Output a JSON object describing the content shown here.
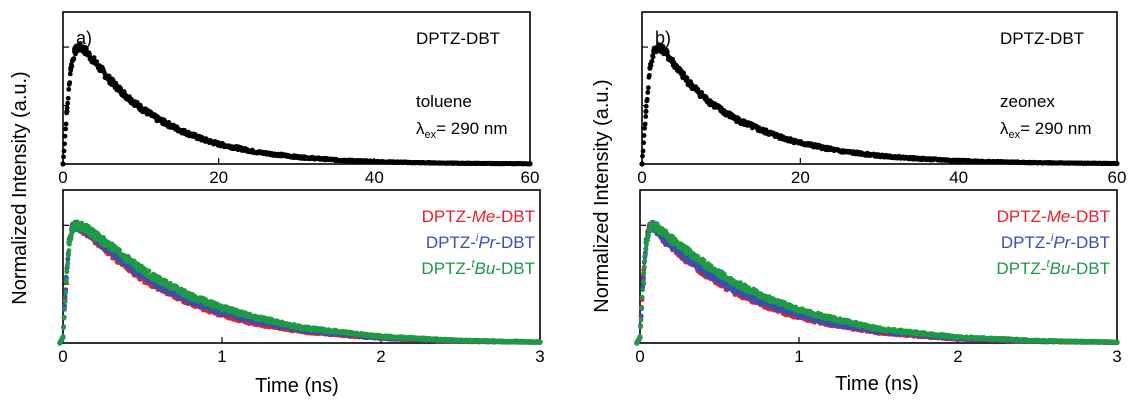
{
  "figure": {
    "panel_a_letter": "a)",
    "panel_b_letter": "b)",
    "ylabel": "Normalized Intensity (a.u.)",
    "xlabel": "Time (ns)"
  },
  "chart_data": [
    {
      "panel": "a) top",
      "type": "scatter",
      "xlim": [
        0,
        60
      ],
      "ylim": [
        0,
        1.3
      ],
      "xticks": [
        0,
        20,
        40,
        60
      ],
      "xlabel": "",
      "ylabel": "Normalized Intensity (a.u.)",
      "annotations": {
        "title": "DPTZ-DBT",
        "solvent": "toluene",
        "excitation_symbol": "λ",
        "excitation_sub": "ex",
        "excitation_value": "= 290 nm"
      },
      "series": [
        {
          "name": "DPTZ-DBT",
          "color": "#000000",
          "x": [
            0,
            0.5,
            1,
            1.5,
            2,
            2.5,
            3,
            4,
            5,
            6,
            8,
            10,
            12,
            15,
            18,
            20,
            25,
            30,
            35,
            40,
            45,
            50,
            55,
            60
          ],
          "y": [
            0,
            0.45,
            0.82,
            0.96,
            1.0,
            0.99,
            0.96,
            0.88,
            0.8,
            0.72,
            0.59,
            0.48,
            0.39,
            0.29,
            0.21,
            0.17,
            0.1,
            0.06,
            0.035,
            0.02,
            0.012,
            0.007,
            0.004,
            0.002
          ]
        }
      ]
    },
    {
      "panel": "a) bottom",
      "type": "scatter",
      "xlim": [
        0,
        3
      ],
      "ylim": [
        0,
        1.3
      ],
      "xticks": [
        0,
        1,
        2,
        3
      ],
      "xlabel": "Time (ns)",
      "ylabel": "Normalized Intensity (a.u.)",
      "legend_position": "top-right",
      "series": [
        {
          "name": "DPTZ-Me-DBT",
          "color": "#e8212b",
          "x": [
            -0.02,
            0.0,
            0.02,
            0.04,
            0.06,
            0.08,
            0.1,
            0.15,
            0.2,
            0.3,
            0.4,
            0.5,
            0.6,
            0.8,
            1.0,
            1.2,
            1.5,
            2.0,
            2.5,
            3.0
          ],
          "y": [
            0,
            0.05,
            0.55,
            0.88,
            0.98,
            1.0,
            0.99,
            0.94,
            0.88,
            0.76,
            0.65,
            0.55,
            0.47,
            0.34,
            0.24,
            0.17,
            0.1,
            0.04,
            0.015,
            0.006
          ]
        },
        {
          "name": "DPTZ-iPr-DBT",
          "color": "#3a4fb0",
          "x": [
            -0.02,
            0.0,
            0.02,
            0.04,
            0.06,
            0.08,
            0.1,
            0.15,
            0.2,
            0.3,
            0.4,
            0.5,
            0.6,
            0.8,
            1.0,
            1.2,
            1.5,
            2.0,
            2.5,
            3.0
          ],
          "y": [
            0,
            0.05,
            0.55,
            0.88,
            0.98,
            1.0,
            0.99,
            0.95,
            0.89,
            0.78,
            0.67,
            0.57,
            0.49,
            0.36,
            0.26,
            0.19,
            0.11,
            0.045,
            0.017,
            0.007
          ]
        },
        {
          "name": "DPTZ-tBu-DBT",
          "color": "#1d9a45",
          "x": [
            -0.02,
            0.0,
            0.02,
            0.04,
            0.06,
            0.08,
            0.1,
            0.15,
            0.2,
            0.3,
            0.4,
            0.5,
            0.6,
            0.8,
            1.0,
            1.2,
            1.5,
            2.0,
            2.5,
            3.0
          ],
          "y": [
            0,
            0.05,
            0.52,
            0.86,
            0.97,
            1.0,
            1.0,
            0.97,
            0.92,
            0.82,
            0.72,
            0.62,
            0.54,
            0.4,
            0.3,
            0.22,
            0.13,
            0.055,
            0.022,
            0.009
          ]
        }
      ],
      "legend": {
        "items": [
          {
            "pre": "DPTZ-",
            "ital": "Me",
            "post": "-DBT",
            "sup": ""
          },
          {
            "pre": "DPTZ-",
            "ital": "Pr",
            "post": "-DBT",
            "sup": "i"
          },
          {
            "pre": "DPTZ-",
            "ital": "Bu",
            "post": "-DBT",
            "sup": "t"
          }
        ]
      }
    },
    {
      "panel": "b) top",
      "type": "scatter",
      "xlim": [
        0,
        60
      ],
      "ylim": [
        0,
        1.3
      ],
      "xticks": [
        0,
        20,
        40,
        60
      ],
      "xlabel": "",
      "ylabel": "Normalized Intensity (a.u.)",
      "annotations": {
        "title": "DPTZ-DBT",
        "solvent": "zeonex",
        "excitation_symbol": "λ",
        "excitation_sub": "ex",
        "excitation_value": "= 290 nm"
      },
      "series": [
        {
          "name": "DPTZ-DBT",
          "color": "#000000",
          "x": [
            0,
            0.5,
            1,
            1.5,
            2,
            2.5,
            3,
            4,
            5,
            6,
            8,
            10,
            12,
            15,
            18,
            20,
            25,
            30,
            35,
            40,
            45,
            50,
            55,
            60
          ],
          "y": [
            0,
            0.45,
            0.82,
            0.96,
            1.0,
            0.99,
            0.95,
            0.86,
            0.77,
            0.69,
            0.56,
            0.46,
            0.38,
            0.29,
            0.22,
            0.18,
            0.11,
            0.07,
            0.045,
            0.028,
            0.018,
            0.011,
            0.007,
            0.004
          ]
        }
      ]
    },
    {
      "panel": "b) bottom",
      "type": "scatter",
      "xlim": [
        0,
        3
      ],
      "ylim": [
        0,
        1.3
      ],
      "xticks": [
        0,
        1,
        2,
        3
      ],
      "xlabel": "Time (ns)",
      "ylabel": "Normalized Intensity (a.u.)",
      "legend_position": "top-right",
      "series": [
        {
          "name": "DPTZ-Me-DBT",
          "color": "#e8212b",
          "x": [
            -0.02,
            0.0,
            0.02,
            0.04,
            0.06,
            0.08,
            0.1,
            0.15,
            0.2,
            0.3,
            0.4,
            0.5,
            0.6,
            0.8,
            1.0,
            1.2,
            1.5,
            2.0,
            2.5,
            3.0
          ],
          "y": [
            0,
            0.05,
            0.55,
            0.88,
            0.98,
            1.0,
            0.97,
            0.88,
            0.82,
            0.7,
            0.6,
            0.51,
            0.43,
            0.31,
            0.22,
            0.16,
            0.09,
            0.035,
            0.013,
            0.005
          ]
        },
        {
          "name": "DPTZ-iPr-DBT",
          "color": "#3a4fb0",
          "x": [
            -0.02,
            0.0,
            0.02,
            0.04,
            0.06,
            0.08,
            0.1,
            0.15,
            0.2,
            0.3,
            0.4,
            0.5,
            0.6,
            0.8,
            1.0,
            1.2,
            1.5,
            2.0,
            2.5,
            3.0
          ],
          "y": [
            0,
            0.05,
            0.55,
            0.88,
            0.98,
            1.0,
            0.97,
            0.89,
            0.83,
            0.72,
            0.62,
            0.53,
            0.45,
            0.33,
            0.24,
            0.17,
            0.1,
            0.04,
            0.015,
            0.006
          ]
        },
        {
          "name": "DPTZ-tBu-DBT",
          "color": "#1d9a45",
          "x": [
            -0.02,
            0.0,
            0.02,
            0.04,
            0.06,
            0.08,
            0.1,
            0.15,
            0.2,
            0.3,
            0.4,
            0.5,
            0.6,
            0.8,
            1.0,
            1.2,
            1.5,
            2.0,
            2.5,
            3.0
          ],
          "y": [
            0,
            0.05,
            0.52,
            0.86,
            0.97,
            1.0,
            0.99,
            0.93,
            0.88,
            0.78,
            0.68,
            0.59,
            0.51,
            0.38,
            0.28,
            0.21,
            0.12,
            0.05,
            0.02,
            0.008
          ]
        }
      ],
      "legend": {
        "items": [
          {
            "pre": "DPTZ-",
            "ital": "Me",
            "post": "-DBT",
            "sup": ""
          },
          {
            "pre": "DPTZ-",
            "ital": "Pr",
            "post": "-DBT",
            "sup": "i"
          },
          {
            "pre": "DPTZ-",
            "ital": "Bu",
            "post": "-DBT",
            "sup": "t"
          }
        ]
      }
    }
  ]
}
